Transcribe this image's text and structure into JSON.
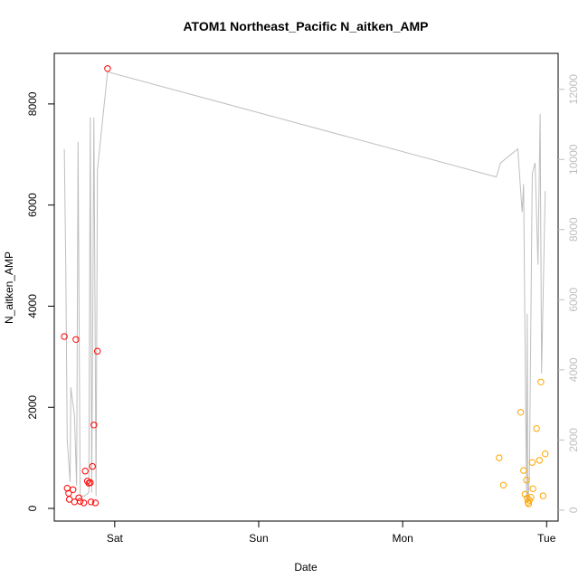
{
  "chart_data": {
    "type": "scatter",
    "title": "ATOM1 Northeast_Pacific N_aitken_AMP",
    "xlabel": "Date",
    "ylabel": "N_aitken_AMP",
    "x_ticks": [
      {
        "label": "Sat",
        "value": 1.0
      },
      {
        "label": "Sun",
        "value": 2.0
      },
      {
        "label": "Mon",
        "value": 3.0
      },
      {
        "label": "Tue",
        "value": 4.0
      }
    ],
    "xlim": [
      0.58,
      4.08
    ],
    "ylim": [
      -250,
      9000
    ],
    "y_ticks": [
      0,
      2000,
      4000,
      6000,
      8000
    ],
    "right_axis": {
      "ylim": [
        -312,
        13025
      ],
      "ticks": [
        0,
        2000,
        4000,
        6000,
        8000,
        10000,
        12000
      ],
      "color": "#bebebe"
    },
    "grid": false,
    "series": [
      {
        "color": "#ff0000",
        "marker": "open-circle",
        "points": [
          {
            "x": 0.65,
            "y": 3400
          },
          {
            "x": 0.67,
            "y": 400
          },
          {
            "x": 0.68,
            "y": 300
          },
          {
            "x": 0.685,
            "y": 180
          },
          {
            "x": 0.71,
            "y": 370
          },
          {
            "x": 0.72,
            "y": 130
          },
          {
            "x": 0.73,
            "y": 3340
          },
          {
            "x": 0.75,
            "y": 210
          },
          {
            "x": 0.76,
            "y": 140
          },
          {
            "x": 0.785,
            "y": 110
          },
          {
            "x": 0.795,
            "y": 740
          },
          {
            "x": 0.81,
            "y": 540
          },
          {
            "x": 0.82,
            "y": 500
          },
          {
            "x": 0.83,
            "y": 510
          },
          {
            "x": 0.835,
            "y": 130
          },
          {
            "x": 0.845,
            "y": 830
          },
          {
            "x": 0.855,
            "y": 1650
          },
          {
            "x": 0.865,
            "y": 110
          },
          {
            "x": 0.88,
            "y": 3110
          },
          {
            "x": 0.95,
            "y": 8700
          }
        ]
      },
      {
        "color": "#ffa500",
        "marker": "open-circle",
        "points": [
          {
            "x": 3.67,
            "y": 1000
          },
          {
            "x": 3.7,
            "y": 460
          },
          {
            "x": 3.82,
            "y": 1900
          },
          {
            "x": 3.84,
            "y": 750
          },
          {
            "x": 3.85,
            "y": 280
          },
          {
            "x": 3.86,
            "y": 560
          },
          {
            "x": 3.865,
            "y": 200
          },
          {
            "x": 3.87,
            "y": 120
          },
          {
            "x": 3.875,
            "y": 90
          },
          {
            "x": 3.88,
            "y": 160
          },
          {
            "x": 3.89,
            "y": 220
          },
          {
            "x": 3.9,
            "y": 910
          },
          {
            "x": 3.905,
            "y": 390
          },
          {
            "x": 3.93,
            "y": 1580
          },
          {
            "x": 3.95,
            "y": 950
          },
          {
            "x": 3.96,
            "y": 2500
          },
          {
            "x": 3.975,
            "y": 250
          },
          {
            "x": 3.99,
            "y": 1080
          }
        ]
      },
      {
        "color": "#bebebe",
        "marker": "line",
        "axis": "right",
        "points": [
          {
            "x": 0.65,
            "y": 10300
          },
          {
            "x": 0.66,
            "y": 7000
          },
          {
            "x": 0.67,
            "y": 2000
          },
          {
            "x": 0.69,
            "y": 800
          },
          {
            "x": 0.695,
            "y": 3500
          },
          {
            "x": 0.72,
            "y": 2700
          },
          {
            "x": 0.735,
            "y": 700
          },
          {
            "x": 0.745,
            "y": 10500
          },
          {
            "x": 0.76,
            "y": 400
          },
          {
            "x": 0.79,
            "y": 400
          },
          {
            "x": 0.82,
            "y": 500
          },
          {
            "x": 0.83,
            "y": 11200
          },
          {
            "x": 0.84,
            "y": 500
          },
          {
            "x": 0.855,
            "y": 11200
          },
          {
            "x": 0.87,
            "y": 400
          },
          {
            "x": 0.88,
            "y": 9700
          },
          {
            "x": 0.95,
            "y": 12500
          },
          {
            "x": 3.65,
            "y": 9500
          },
          {
            "x": 3.68,
            "y": 9900
          },
          {
            "x": 3.8,
            "y": 10300
          },
          {
            "x": 3.83,
            "y": 8500
          },
          {
            "x": 3.84,
            "y": 9300
          },
          {
            "x": 3.86,
            "y": 300
          },
          {
            "x": 3.865,
            "y": 5600
          },
          {
            "x": 3.87,
            "y": 200
          },
          {
            "x": 3.88,
            "y": 900
          },
          {
            "x": 3.9,
            "y": 9600
          },
          {
            "x": 3.92,
            "y": 9900
          },
          {
            "x": 3.94,
            "y": 7000
          },
          {
            "x": 3.955,
            "y": 11300
          },
          {
            "x": 3.965,
            "y": 3900
          },
          {
            "x": 3.99,
            "y": 9100
          }
        ]
      }
    ]
  }
}
